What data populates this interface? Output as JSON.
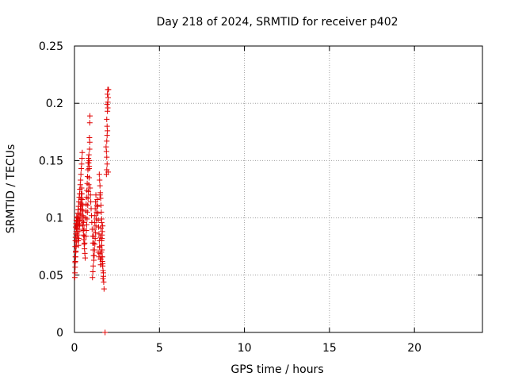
{
  "chart_data": {
    "type": "scatter",
    "title": "Day 218 of 2024, SRMTID for receiver p402",
    "xlabel": "GPS time / hours",
    "ylabel": "SRMTID / TECUs",
    "xlim": [
      0,
      24
    ],
    "ylim": [
      0,
      0.25
    ],
    "x_ticks": [
      0,
      5,
      10,
      15,
      20
    ],
    "x_tick_labels": [
      "0",
      "5",
      "10",
      "15",
      "20"
    ],
    "y_ticks": [
      0,
      0.05,
      0.1,
      0.15,
      0.2,
      0.25
    ],
    "y_tick_labels": [
      "0",
      "0.05",
      "0.1",
      "0.15",
      "0.2",
      "0.25"
    ],
    "grid": true,
    "grid_style": "dotted",
    "legend": "none",
    "marker": "plus",
    "color": "#e00000",
    "series": [
      {
        "points": [
          [
            0.02,
            0.048
          ],
          [
            0.03,
            0.052
          ],
          [
            0.04,
            0.057
          ],
          [
            0.05,
            0.062
          ],
          [
            0.06,
            0.066
          ],
          [
            0.07,
            0.07
          ],
          [
            0.04,
            0.075
          ],
          [
            0.05,
            0.08
          ],
          [
            0.06,
            0.083
          ],
          [
            0.08,
            0.086
          ],
          [
            0.1,
            0.088
          ],
          [
            0.12,
            0.091
          ],
          [
            0.14,
            0.094
          ],
          [
            0.16,
            0.097
          ],
          [
            0.18,
            0.1
          ],
          [
            0.2,
            0.104
          ],
          [
            0.22,
            0.107
          ],
          [
            0.24,
            0.11
          ],
          [
            0.26,
            0.114
          ],
          [
            0.28,
            0.118
          ],
          [
            0.3,
            0.121
          ],
          [
            0.32,
            0.125
          ],
          [
            0.34,
            0.129
          ],
          [
            0.36,
            0.133
          ],
          [
            0.38,
            0.138
          ],
          [
            0.4,
            0.143
          ],
          [
            0.42,
            0.147
          ],
          [
            0.44,
            0.152
          ],
          [
            0.46,
            0.157
          ],
          [
            0.07,
            0.092
          ],
          [
            0.09,
            0.095
          ],
          [
            0.11,
            0.098
          ],
          [
            0.13,
            0.101
          ],
          [
            0.15,
            0.095
          ],
          [
            0.17,
            0.09
          ],
          [
            0.19,
            0.085
          ],
          [
            0.21,
            0.08
          ],
          [
            0.23,
            0.076
          ],
          [
            0.25,
            0.082
          ],
          [
            0.27,
            0.088
          ],
          [
            0.29,
            0.093
          ],
          [
            0.31,
            0.098
          ],
          [
            0.33,
            0.103
          ],
          [
            0.35,
            0.108
          ],
          [
            0.37,
            0.113
          ],
          [
            0.39,
            0.117
          ],
          [
            0.41,
            0.112
          ],
          [
            0.43,
            0.107
          ],
          [
            0.45,
            0.102
          ],
          [
            0.47,
            0.097
          ],
          [
            0.49,
            0.093
          ],
          [
            0.51,
            0.089
          ],
          [
            0.53,
            0.085
          ],
          [
            0.55,
            0.081
          ],
          [
            0.57,
            0.077
          ],
          [
            0.59,
            0.073
          ],
          [
            0.61,
            0.069
          ],
          [
            0.63,
            0.065
          ],
          [
            0.6,
            0.078
          ],
          [
            0.58,
            0.084
          ],
          [
            0.56,
            0.09
          ],
          [
            0.54,
            0.096
          ],
          [
            0.52,
            0.101
          ],
          [
            0.5,
            0.106
          ],
          [
            0.48,
            0.111
          ],
          [
            0.46,
            0.116
          ],
          [
            0.44,
            0.121
          ],
          [
            0.42,
            0.126
          ],
          [
            0.4,
            0.121
          ],
          [
            0.38,
            0.116
          ],
          [
            0.36,
            0.11
          ],
          [
            0.34,
            0.104
          ],
          [
            0.32,
            0.099
          ],
          [
            0.3,
            0.094
          ],
          [
            0.28,
            0.09
          ],
          [
            0.26,
            0.095
          ],
          [
            0.24,
            0.1
          ],
          [
            0.22,
            0.104
          ],
          [
            0.2,
            0.098
          ],
          [
            0.18,
            0.093
          ],
          [
            0.16,
            0.088
          ],
          [
            0.14,
            0.083
          ],
          [
            0.12,
            0.079
          ],
          [
            0.1,
            0.075
          ],
          [
            0.08,
            0.071
          ],
          [
            0.06,
            0.066
          ],
          [
            0.04,
            0.061
          ],
          [
            0.65,
            0.1
          ],
          [
            0.67,
            0.106
          ],
          [
            0.69,
            0.112
          ],
          [
            0.71,
            0.118
          ],
          [
            0.73,
            0.124
          ],
          [
            0.75,
            0.13
          ],
          [
            0.77,
            0.136
          ],
          [
            0.79,
            0.142
          ],
          [
            0.8,
            0.148
          ],
          [
            0.82,
            0.152
          ],
          [
            0.84,
            0.148
          ],
          [
            0.86,
            0.143
          ],
          [
            0.88,
            0.15
          ],
          [
            0.87,
            0.145
          ],
          [
            0.85,
            0.155
          ],
          [
            0.89,
            0.16
          ],
          [
            0.9,
            0.166
          ],
          [
            0.88,
            0.17
          ],
          [
            0.9,
            0.183
          ],
          [
            0.91,
            0.189
          ],
          [
            0.86,
            0.135
          ],
          [
            0.84,
            0.129
          ],
          [
            0.82,
            0.123
          ],
          [
            0.8,
            0.117
          ],
          [
            0.78,
            0.111
          ],
          [
            0.76,
            0.105
          ],
          [
            0.74,
            0.099
          ],
          [
            0.72,
            0.094
          ],
          [
            0.7,
            0.089
          ],
          [
            0.68,
            0.084
          ],
          [
            0.92,
            0.126
          ],
          [
            0.94,
            0.12
          ],
          [
            0.96,
            0.114
          ],
          [
            0.98,
            0.108
          ],
          [
            1.0,
            0.102
          ],
          [
            1.02,
            0.096
          ],
          [
            1.04,
            0.09
          ],
          [
            1.06,
            0.084
          ],
          [
            1.08,
            0.078
          ],
          [
            1.1,
            0.072
          ],
          [
            1.12,
            0.067
          ],
          [
            1.14,
            0.063
          ],
          [
            1.16,
            0.067
          ],
          [
            1.18,
            0.072
          ],
          [
            1.2,
            0.077
          ],
          [
            1.22,
            0.082
          ],
          [
            1.24,
            0.087
          ],
          [
            1.26,
            0.093
          ],
          [
            1.28,
            0.099
          ],
          [
            1.3,
            0.105
          ],
          [
            1.32,
            0.111
          ],
          [
            1.34,
            0.116
          ],
          [
            1.36,
            0.11
          ],
          [
            1.38,
            0.104
          ],
          [
            1.4,
            0.098
          ],
          [
            1.42,
            0.092
          ],
          [
            1.44,
            0.086
          ],
          [
            1.46,
            0.08
          ],
          [
            1.48,
            0.074
          ],
          [
            1.5,
            0.069
          ],
          [
            1.52,
            0.064
          ],
          [
            1.54,
            0.059
          ],
          [
            1.56,
            0.064
          ],
          [
            1.58,
            0.07
          ],
          [
            1.6,
            0.076
          ],
          [
            1.62,
            0.082
          ],
          [
            1.64,
            0.088
          ],
          [
            1.66,
            0.093
          ],
          [
            1.6,
            0.099
          ],
          [
            1.58,
            0.105
          ],
          [
            1.56,
            0.111
          ],
          [
            1.54,
            0.117
          ],
          [
            1.52,
            0.122
          ],
          [
            1.5,
            0.128
          ],
          [
            1.48,
            0.133
          ],
          [
            1.46,
            0.138
          ],
          [
            1.5,
            0.12
          ],
          [
            1.06,
            0.048
          ],
          [
            1.08,
            0.053
          ],
          [
            1.1,
            0.058
          ],
          [
            1.12,
            0.078
          ],
          [
            1.14,
            0.084
          ],
          [
            1.16,
            0.09
          ],
          [
            1.18,
            0.096
          ],
          [
            1.2,
            0.102
          ],
          [
            1.22,
            0.108
          ],
          [
            1.24,
            0.114
          ],
          [
            1.26,
            0.12
          ],
          [
            1.4,
            0.07
          ],
          [
            1.44,
            0.066
          ],
          [
            1.48,
            0.075
          ],
          [
            1.52,
            0.083
          ],
          [
            1.56,
            0.091
          ],
          [
            1.6,
            0.096
          ],
          [
            1.62,
            0.072
          ],
          [
            1.64,
            0.066
          ],
          [
            1.66,
            0.06
          ],
          [
            1.68,
            0.054
          ],
          [
            1.7,
            0.049
          ],
          [
            1.72,
            0.044
          ],
          [
            1.74,
            0.038
          ],
          [
            1.68,
            0.047
          ],
          [
            1.7,
            0.052
          ],
          [
            1.66,
            0.058
          ],
          [
            1.64,
            0.062
          ],
          [
            1.62,
            0.066
          ],
          [
            1.6,
            0.08
          ],
          [
            1.62,
            0.085
          ],
          [
            1.8,
            0.0
          ],
          [
            1.88,
            0.138
          ],
          [
            1.9,
            0.142
          ],
          [
            1.92,
            0.147
          ],
          [
            1.9,
            0.153
          ],
          [
            1.88,
            0.158
          ],
          [
            1.86,
            0.162
          ],
          [
            1.9,
            0.167
          ],
          [
            1.92,
            0.172
          ],
          [
            1.94,
            0.176
          ],
          [
            1.92,
            0.18
          ],
          [
            1.9,
            0.186
          ],
          [
            1.94,
            0.193
          ],
          [
            1.96,
            0.196
          ],
          [
            1.92,
            0.199
          ],
          [
            1.96,
            0.201
          ],
          [
            1.98,
            0.205
          ],
          [
            1.94,
            0.208
          ],
          [
            1.96,
            0.212
          ],
          [
            2.0,
            0.212
          ],
          [
            1.98,
            0.14
          ]
        ]
      }
    ]
  }
}
